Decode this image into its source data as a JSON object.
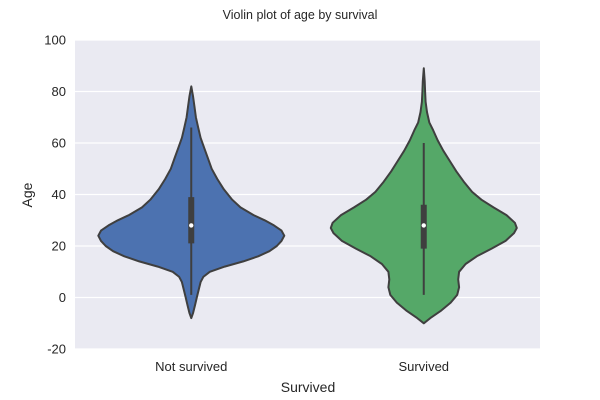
{
  "chart_data": {
    "type": "violin",
    "title": "Violin plot of age by survival",
    "xlabel": "Survived",
    "ylabel": "Age",
    "ylim": [
      -20,
      100
    ],
    "yticks": [
      -20,
      0,
      20,
      40,
      60,
      80,
      100
    ],
    "grid": true,
    "categories": [
      "Not survived",
      "Survived"
    ],
    "series": [
      {
        "category": "Not survived",
        "color": "#4c72b0",
        "min": 1,
        "q1": 21,
        "median": 28,
        "q3": 39,
        "max": 66,
        "extent": [
          -8,
          82
        ],
        "density": [
          [
            -8,
            0.0
          ],
          [
            -6,
            0.02
          ],
          [
            -3,
            0.04
          ],
          [
            0,
            0.06
          ],
          [
            3,
            0.08
          ],
          [
            6,
            0.1
          ],
          [
            8,
            0.13
          ],
          [
            10,
            0.2
          ],
          [
            12,
            0.36
          ],
          [
            14,
            0.56
          ],
          [
            16,
            0.72
          ],
          [
            18,
            0.84
          ],
          [
            20,
            0.92
          ],
          [
            22,
            0.97
          ],
          [
            24,
            1.0
          ],
          [
            26,
            0.97
          ],
          [
            28,
            0.89
          ],
          [
            30,
            0.79
          ],
          [
            32,
            0.67
          ],
          [
            35,
            0.53
          ],
          [
            38,
            0.44
          ],
          [
            42,
            0.35
          ],
          [
            46,
            0.28
          ],
          [
            50,
            0.22
          ],
          [
            54,
            0.18
          ],
          [
            58,
            0.14
          ],
          [
            62,
            0.1
          ],
          [
            66,
            0.075
          ],
          [
            70,
            0.05
          ],
          [
            74,
            0.035
          ],
          [
            78,
            0.02
          ],
          [
            82,
            0.0
          ]
        ]
      },
      {
        "category": "Survived",
        "color": "#55a868",
        "min": 1,
        "q1": 19,
        "median": 28,
        "q3": 36,
        "max": 60,
        "extent": [
          -10,
          89
        ],
        "density": [
          [
            -10,
            0.0
          ],
          [
            -8,
            0.07
          ],
          [
            -5,
            0.19
          ],
          [
            -2,
            0.29
          ],
          [
            1,
            0.36
          ],
          [
            4,
            0.38
          ],
          [
            7,
            0.37
          ],
          [
            10,
            0.38
          ],
          [
            13,
            0.45
          ],
          [
            16,
            0.57
          ],
          [
            19,
            0.73
          ],
          [
            22,
            0.88
          ],
          [
            25,
            0.97
          ],
          [
            27,
            1.0
          ],
          [
            29,
            0.98
          ],
          [
            32,
            0.89
          ],
          [
            35,
            0.75
          ],
          [
            38,
            0.62
          ],
          [
            41,
            0.52
          ],
          [
            45,
            0.43
          ],
          [
            49,
            0.35
          ],
          [
            53,
            0.28
          ],
          [
            57,
            0.21
          ],
          [
            61,
            0.15
          ],
          [
            65,
            0.1
          ],
          [
            68,
            0.06
          ],
          [
            72,
            0.035
          ],
          [
            76,
            0.02
          ],
          [
            80,
            0.015
          ],
          [
            84,
            0.01
          ],
          [
            89,
            0.0
          ]
        ]
      }
    ]
  }
}
